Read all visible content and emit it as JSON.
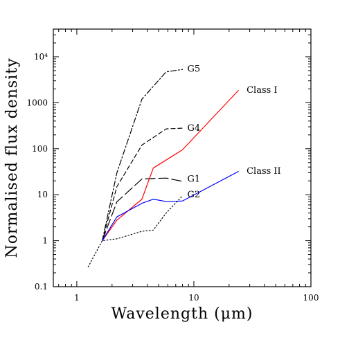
{
  "chart_data": {
    "type": "line",
    "title": "",
    "xlabel": "Wavelength (μm)",
    "ylabel": "Normalised flux density",
    "x_scale": "log",
    "y_scale": "log",
    "xlim": [
      0.63,
      100
    ],
    "ylim": [
      0.1,
      40000
    ],
    "x_ticks": [
      {
        "value": 1,
        "label": "1"
      },
      {
        "value": 10,
        "label": "10"
      },
      {
        "value": 100,
        "label": "100"
      }
    ],
    "y_ticks": [
      {
        "value": 0.1,
        "label": "0.1"
      },
      {
        "value": 1,
        "label": "1"
      },
      {
        "value": 10,
        "label": "10"
      },
      {
        "value": 100,
        "label": "100"
      },
      {
        "value": 1000,
        "label": "1000"
      },
      {
        "value": 10000,
        "label": "10⁴"
      }
    ],
    "grid": false,
    "legend": "none",
    "series": [
      {
        "name": "G5",
        "color": "#000000",
        "dash": "dashdot",
        "label_x": 8.1,
        "label_y": 5400,
        "points": [
          [
            1.65,
            1.0
          ],
          [
            2.2,
            30
          ],
          [
            3.6,
            1200
          ],
          [
            5.8,
            4700
          ],
          [
            8.0,
            5300
          ]
        ]
      },
      {
        "name": "G4",
        "color": "#000000",
        "dash": "dashed",
        "label_x": 8.1,
        "label_y": 280,
        "points": [
          [
            1.65,
            1.0
          ],
          [
            2.2,
            15
          ],
          [
            3.6,
            120
          ],
          [
            5.8,
            270
          ],
          [
            8.0,
            280
          ]
        ]
      },
      {
        "name": "G1",
        "color": "#000000",
        "dash": "longdash",
        "label_x": 8.1,
        "label_y": 22,
        "points": [
          [
            1.65,
            1.0
          ],
          [
            2.2,
            7.0
          ],
          [
            3.6,
            22
          ],
          [
            5.8,
            23
          ],
          [
            8.0,
            19.5
          ]
        ]
      },
      {
        "name": "G2",
        "color": "#000000",
        "dash": "dotted",
        "label_x": 8.1,
        "label_y": 10,
        "points": [
          [
            1.25,
            0.27
          ],
          [
            1.65,
            1.0
          ],
          [
            2.2,
            1.1
          ],
          [
            3.6,
            1.6
          ],
          [
            4.5,
            1.7
          ],
          [
            5.8,
            4.0
          ],
          [
            8.0,
            9.5
          ]
        ]
      },
      {
        "name": "Class I",
        "color": "#ff0000",
        "dash": "solid",
        "label_x": 26.0,
        "label_y": 1900,
        "points": [
          [
            1.65,
            1.0
          ],
          [
            2.2,
            2.8
          ],
          [
            3.6,
            8.0
          ],
          [
            4.5,
            38
          ],
          [
            8.0,
            95
          ],
          [
            24.0,
            1850
          ]
        ]
      },
      {
        "name": "Class II",
        "color": "#0000ff",
        "dash": "solid",
        "label_x": 26.0,
        "label_y": 33,
        "points": [
          [
            1.65,
            1.0
          ],
          [
            2.2,
            3.3
          ],
          [
            3.6,
            6.5
          ],
          [
            4.5,
            8.0
          ],
          [
            5.8,
            7.1
          ],
          [
            8.0,
            7.3
          ],
          [
            24.0,
            32
          ]
        ]
      }
    ]
  }
}
